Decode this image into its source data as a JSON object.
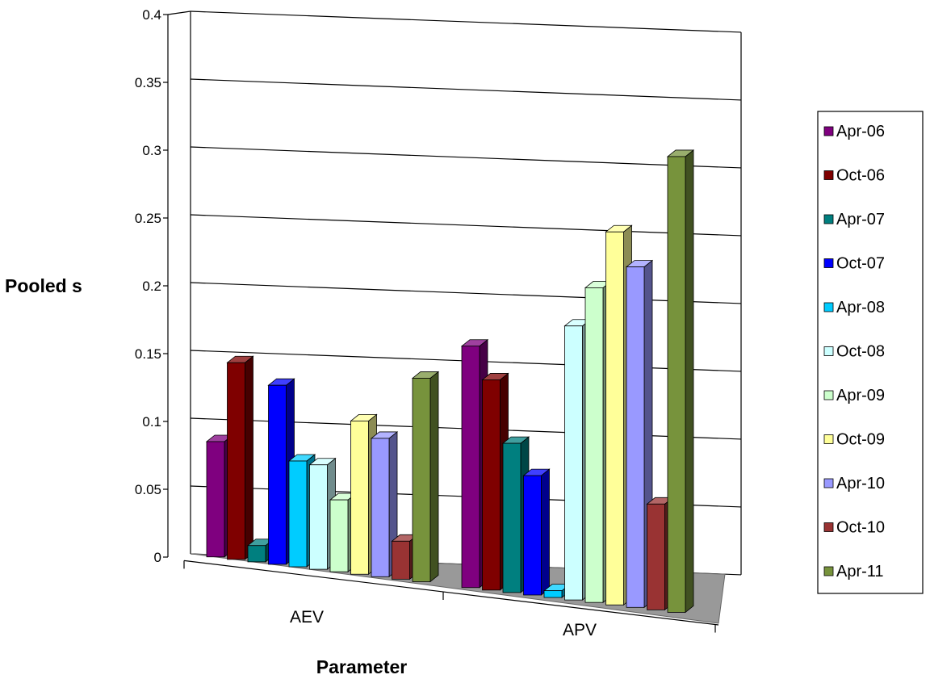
{
  "chart_data": {
    "type": "bar",
    "title": "",
    "xlabel": "Parameter",
    "ylabel": "Pooled s",
    "ylim": [
      0,
      0.4
    ],
    "yticks": [
      "0",
      "0.05",
      "0.1",
      "0.15",
      "0.2",
      "0.25",
      "0.3",
      "0.35",
      "0.4"
    ],
    "categories": [
      "AEV",
      "APV"
    ],
    "legend_position": "right",
    "grid": true,
    "style": "3d-clustered",
    "series": [
      {
        "name": "Apr-06",
        "color": "#7f007f",
        "values": [
          0.085,
          0.178
        ]
      },
      {
        "name": "Oct-06",
        "color": "#7f0000",
        "values": [
          0.145,
          0.155
        ]
      },
      {
        "name": "Apr-07",
        "color": "#007f7f",
        "values": [
          0.012,
          0.11
        ]
      },
      {
        "name": "Oct-07",
        "color": "#0000ff",
        "values": [
          0.132,
          0.088
        ]
      },
      {
        "name": "Apr-08",
        "color": "#00ccff",
        "values": [
          0.078,
          0.005
        ]
      },
      {
        "name": "Oct-08",
        "color": "#ccffff",
        "values": [
          0.077,
          0.202
        ]
      },
      {
        "name": "Apr-09",
        "color": "#ccffcc",
        "values": [
          0.053,
          0.232
        ]
      },
      {
        "name": "Oct-09",
        "color": "#ffff99",
        "values": [
          0.113,
          0.275
        ]
      },
      {
        "name": "Apr-10",
        "color": "#9999ff",
        "values": [
          0.102,
          0.251
        ]
      },
      {
        "name": "Oct-10",
        "color": "#993333",
        "values": [
          0.028,
          0.078
        ]
      },
      {
        "name": "Apr-11",
        "color": "#77933c",
        "values": [
          0.15,
          0.336
        ]
      }
    ]
  }
}
